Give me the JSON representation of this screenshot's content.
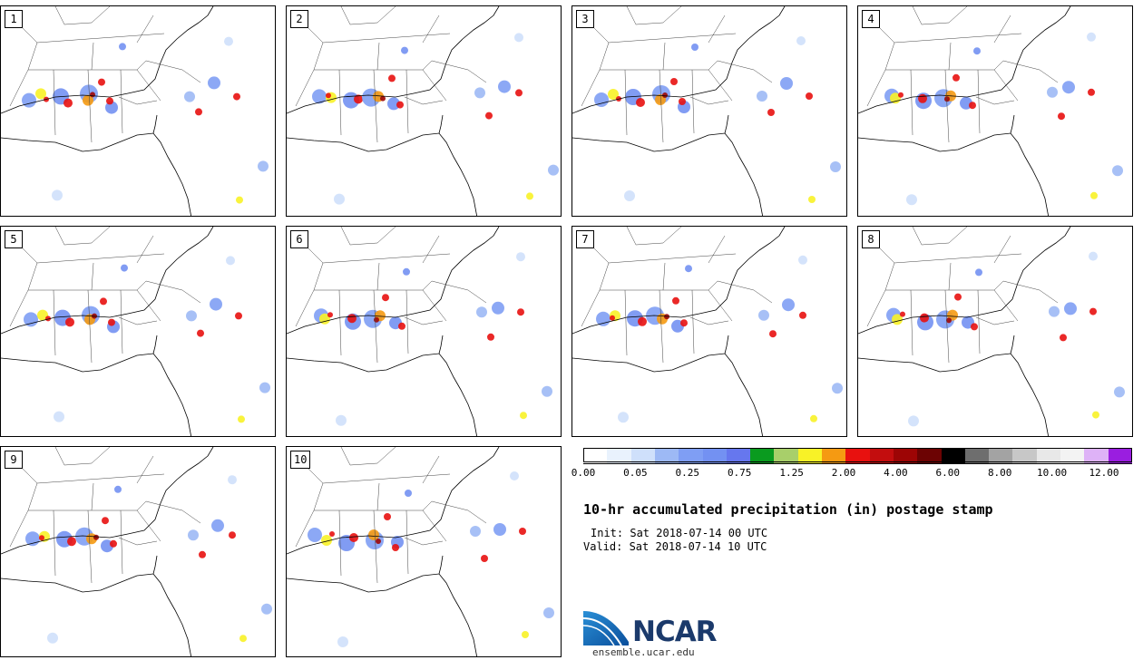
{
  "panels": [
    {
      "label": "1"
    },
    {
      "label": "2"
    },
    {
      "label": "3"
    },
    {
      "label": "4"
    },
    {
      "label": "5"
    },
    {
      "label": "6"
    },
    {
      "label": "7"
    },
    {
      "label": "8"
    },
    {
      "label": "9"
    },
    {
      "label": "10"
    }
  ],
  "colorbar": {
    "colors": [
      "#ffffff",
      "#e9f2fd",
      "#cfe0fb",
      "#9db9f5",
      "#7f9ef4",
      "#7391f2",
      "#6677ee",
      "#0a9b1f",
      "#a8cf6a",
      "#f8f227",
      "#f59a12",
      "#e8110f",
      "#c30d0e",
      "#9d0505",
      "#6c0303",
      "#000000",
      "#6e6e6e",
      "#a3a3a3",
      "#c7c7c7",
      "#e8e8e8",
      "#f3f3f3",
      "#deb2f7",
      "#9a1ee0"
    ],
    "labels": [
      "0.00",
      "0.05",
      "0.25",
      "0.75",
      "1.25",
      "2.00",
      "4.00",
      "6.00",
      "8.00",
      "10.00",
      "12.00"
    ]
  },
  "title": "10-hr accumulated precipitation (in) postage stamp",
  "init": "Init: Sat 2018-07-14 00 UTC",
  "valid": "Valid: Sat 2018-07-14 10 UTC",
  "logo": {
    "text": "NCAR",
    "site": "ensemble.ucar.edu"
  }
}
